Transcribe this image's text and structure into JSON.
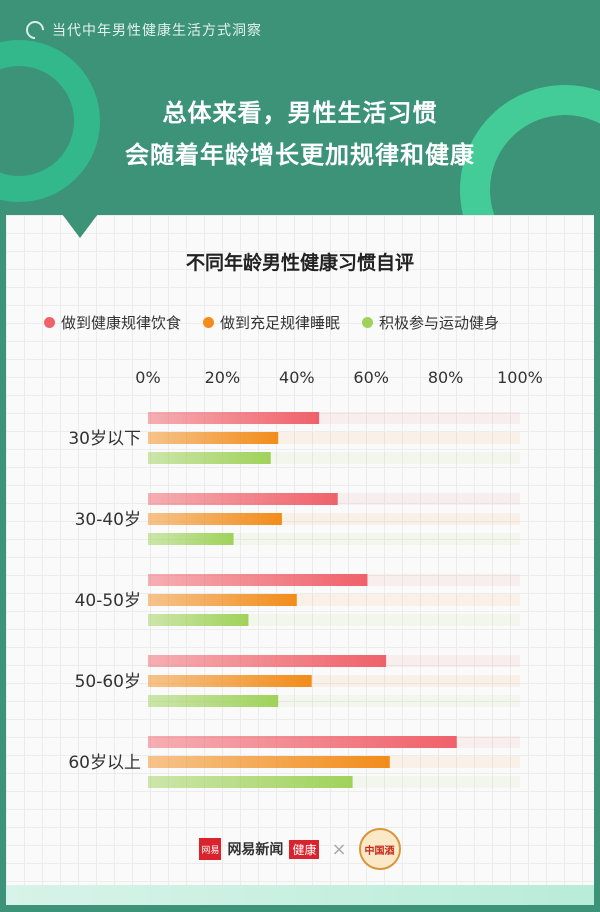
{
  "header": {
    "brand": "当代中年男性健康生活方式洞察",
    "headline_line1": "总体来看，男性生活习惯",
    "headline_line2": "会随着年龄增长更加规律和健康"
  },
  "chart_data": {
    "type": "bar",
    "orientation": "horizontal",
    "title": "不同年龄男性健康习惯自评",
    "categories": [
      "30岁以下",
      "30-40岁",
      "40-50岁",
      "50-60岁",
      "60岁以上"
    ],
    "xlim": [
      0,
      100
    ],
    "x_ticks": [
      "0%",
      "20%",
      "40%",
      "60%",
      "80%",
      "100%"
    ],
    "grid": true,
    "legend": "top",
    "series": [
      {
        "name": "做到健康规律饮食",
        "color": "#f0616a",
        "values": [
          46,
          51,
          59,
          64,
          83
        ]
      },
      {
        "name": "做到充足规律睡眠",
        "color": "#f28c1a",
        "values": [
          35,
          36,
          40,
          44,
          65
        ]
      },
      {
        "name": "积极参与运动健身",
        "color": "#9fd25a",
        "values": [
          33,
          23,
          27,
          35,
          55
        ]
      }
    ]
  },
  "footer": {
    "logo_mark": "网易",
    "logo_text": "网易新闻",
    "logo_tag": "健康",
    "times": "×",
    "partner_mark": "中国酒"
  }
}
